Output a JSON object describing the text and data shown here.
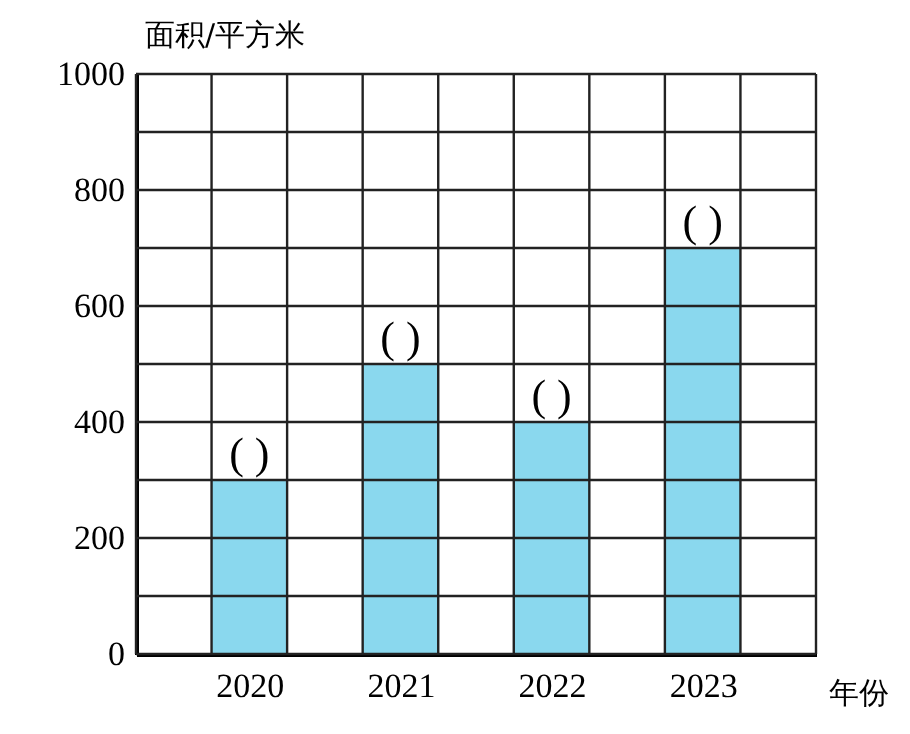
{
  "chart_data": {
    "type": "bar",
    "xlabel": "年份",
    "ylabel": "面积/平方米",
    "categories": [
      "2020",
      "2021",
      "2022",
      "2023"
    ],
    "values": [
      300,
      500,
      400,
      700
    ],
    "value_labels": [
      "(   )",
      "(   )",
      "(   )",
      "(   )"
    ],
    "color": "#8ad8ee",
    "ylim": [
      0,
      1000
    ],
    "yticks": [
      0,
      {
        "value": 100,
        "label": null
      },
      200,
      {
        "value": 300,
        "label": null
      },
      400,
      {
        "value": 500,
        "label": null
      },
      600,
      {
        "value": 700,
        "label": null
      },
      800,
      {
        "value": 900,
        "label": null
      },
      1000
    ],
    "grid": true
  }
}
